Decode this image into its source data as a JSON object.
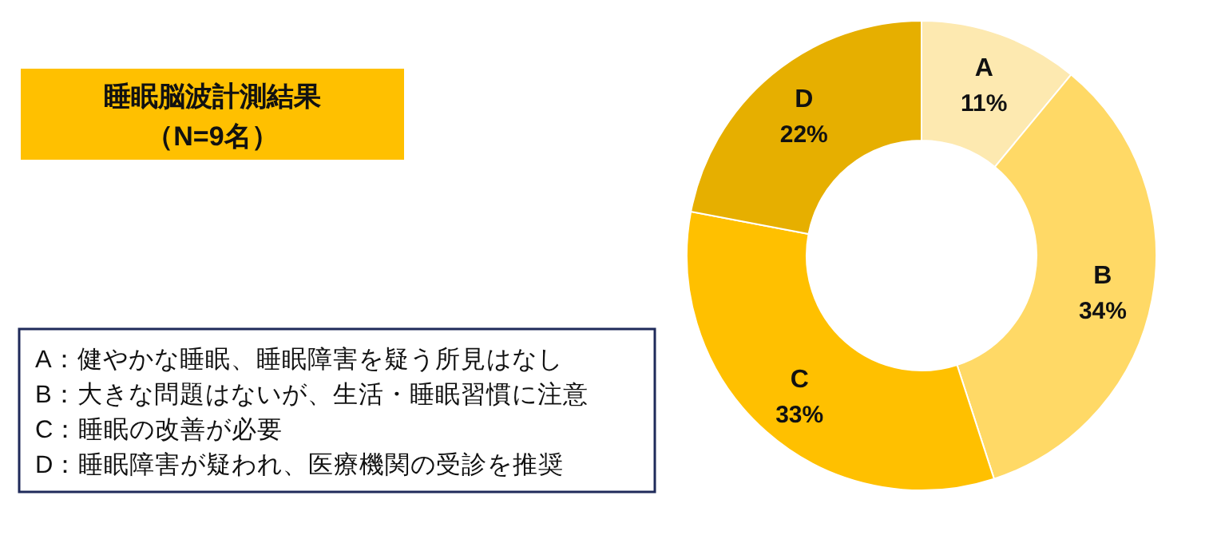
{
  "chart_data": {
    "type": "donut",
    "title": "睡眠脳波計測結果",
    "subtitle": "（N=9名）",
    "categories": [
      "A",
      "B",
      "C",
      "D"
    ],
    "values": [
      11,
      34,
      33,
      22
    ],
    "colors": [
      "#fde9b0",
      "#ffd966",
      "#ffc000",
      "#e6af00"
    ],
    "value_labels": [
      "11%",
      "34%",
      "33%",
      "22%"
    ],
    "annotations": [
      "A：健やかな睡眠、睡眠障害を疑う所見はなし",
      "B：大きな問題はないが、生活・睡眠習慣に注意",
      "C：睡眠の改善が必要",
      "D：睡眠障害が疑われ、医療機関の受診を推奨"
    ]
  }
}
